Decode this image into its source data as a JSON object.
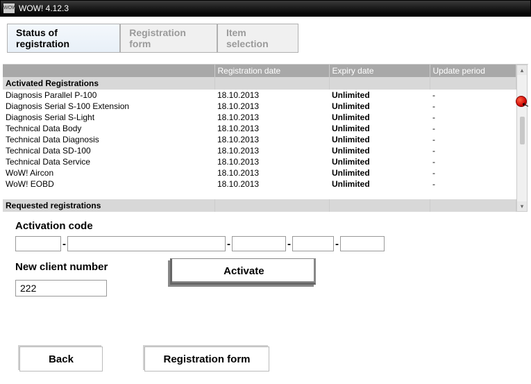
{
  "window": {
    "title": "WOW! 4.12.3",
    "icon_label": "WOW"
  },
  "tabs": [
    {
      "label": "Status of registration",
      "active": true
    },
    {
      "label": "Registration form",
      "active": false
    },
    {
      "label": "Item selection",
      "active": false
    }
  ],
  "table": {
    "columns": [
      "",
      "Registration date",
      "Expiry date",
      "Update period"
    ],
    "section1": "Activated Registrations",
    "rows": [
      {
        "name": "Diagnosis Parallel P-100",
        "reg": "18.10.2013",
        "exp": "Unlimited",
        "upd": "-"
      },
      {
        "name": "Diagnosis Serial S-100 Extension",
        "reg": "18.10.2013",
        "exp": "Unlimited",
        "upd": "-"
      },
      {
        "name": "Diagnosis Serial S-Light",
        "reg": "18.10.2013",
        "exp": "Unlimited",
        "upd": "-"
      },
      {
        "name": "Technical Data Body",
        "reg": "18.10.2013",
        "exp": "Unlimited",
        "upd": "-"
      },
      {
        "name": "Technical Data Diagnosis",
        "reg": "18.10.2013",
        "exp": "Unlimited",
        "upd": "-"
      },
      {
        "name": "Technical Data SD-100",
        "reg": "18.10.2013",
        "exp": "Unlimited",
        "upd": "-"
      },
      {
        "name": "Technical Data Service",
        "reg": "18.10.2013",
        "exp": "Unlimited",
        "upd": "-"
      },
      {
        "name": "WoW! Aircon",
        "reg": "18.10.2013",
        "exp": "Unlimited",
        "upd": "-"
      },
      {
        "name": "WoW! EOBD",
        "reg": "18.10.2013",
        "exp": "Unlimited",
        "upd": "-"
      }
    ],
    "section2": "Requested registrations"
  },
  "form": {
    "activation_label": "Activation code",
    "client_label": "New client number",
    "client_value": "222",
    "activate_label": "Activate"
  },
  "buttons": {
    "back": "Back",
    "regform": "Registration form"
  }
}
